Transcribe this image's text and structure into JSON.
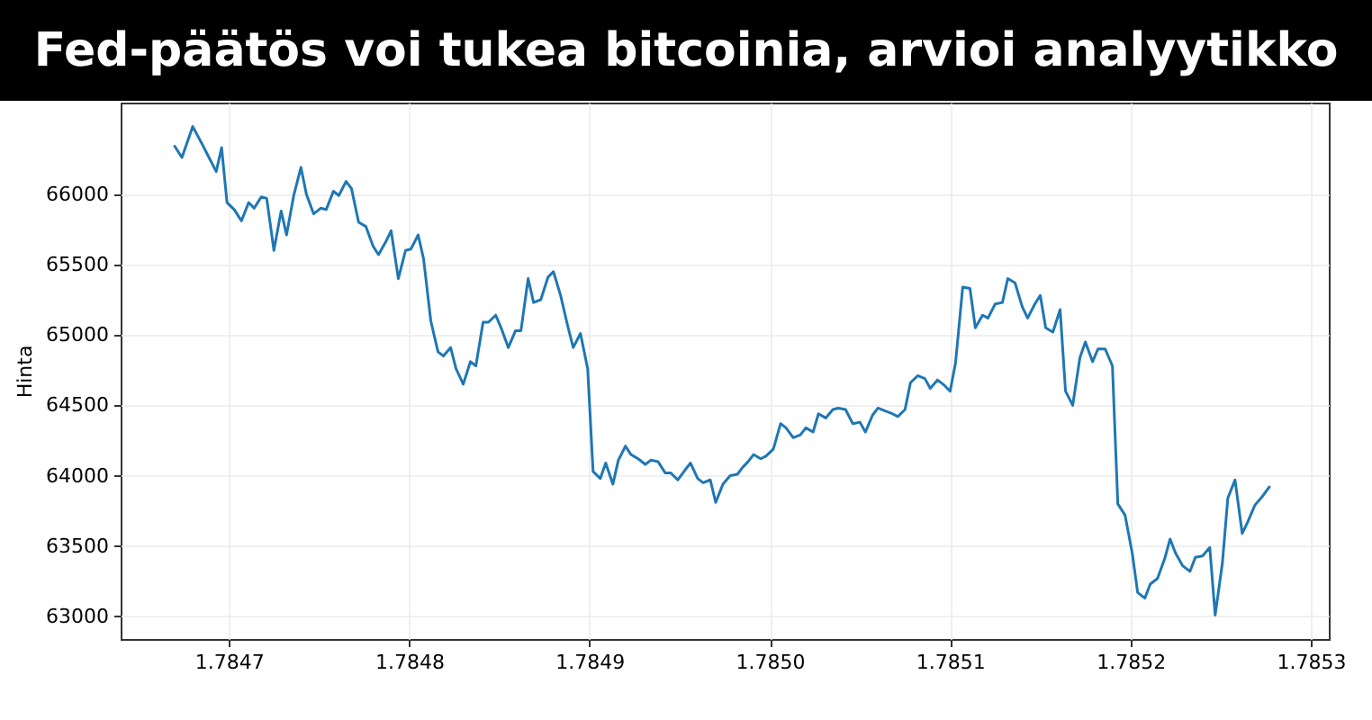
{
  "chart_data": {
    "type": "line",
    "title": "Fed-päätös voi tukea bitcoinia, arvioi analyytikko",
    "ylabel": "Hinta",
    "x": [
      1.78467,
      1.784674,
      1.78468,
      1.784685,
      1.784689,
      1.784693,
      1.784696,
      1.784699,
      1.784703,
      1.784707,
      1.784711,
      1.784714,
      1.784718,
      1.784721,
      1.784725,
      1.784729,
      1.784732,
      1.784736,
      1.78474,
      1.784743,
      1.784747,
      1.784751,
      1.784754,
      1.784758,
      1.784761,
      1.784765,
      1.784768,
      1.784772,
      1.784776,
      1.78478,
      1.784783,
      1.784787,
      1.78479,
      1.784794,
      1.784798,
      1.784801,
      1.784805,
      1.784808,
      1.784812,
      1.784816,
      1.784819,
      1.784823,
      1.784826,
      1.78483,
      1.784834,
      1.784837,
      1.784841,
      1.784844,
      1.784848,
      1.784851,
      1.784855,
      1.784859,
      1.784862,
      1.784866,
      1.784869,
      1.784873,
      1.784877,
      1.78488,
      1.784884,
      1.784888,
      1.784891,
      1.784895,
      1.784899,
      1.784902,
      1.784906,
      1.784909,
      1.784913,
      1.784916,
      1.78492,
      1.784923,
      1.784927,
      1.784931,
      1.784934,
      1.784938,
      1.784942,
      1.784945,
      1.784949,
      1.784953,
      1.784956,
      1.78496,
      1.784963,
      1.784967,
      1.78497,
      1.784974,
      1.784978,
      1.784982,
      1.784985,
      1.784988,
      1.784991,
      1.784995,
      1.784998,
      1.785002,
      1.785006,
      1.785009,
      1.785013,
      1.785017,
      1.78502,
      1.785024,
      1.785027,
      1.785031,
      1.785035,
      1.785038,
      1.785042,
      1.785046,
      1.78505,
      1.785053,
      1.785057,
      1.78506,
      1.785064,
      1.785068,
      1.785071,
      1.785075,
      1.785078,
      1.785082,
      1.785086,
      1.785089,
      1.785093,
      1.785097,
      1.7851,
      1.785103,
      1.785107,
      1.785111,
      1.785114,
      1.785118,
      1.785121,
      1.785125,
      1.785129,
      1.785132,
      1.785136,
      1.78514,
      1.785143,
      1.785147,
      1.78515,
      1.785153,
      1.785157,
      1.785161,
      1.785164,
      1.785168,
      1.785172,
      1.785175,
      1.785179,
      1.785182,
      1.785186,
      1.78519,
      1.785193,
      1.785197,
      1.785201,
      1.785204,
      1.785208,
      1.785211,
      1.785215,
      1.785219,
      1.785222,
      1.785225,
      1.785229,
      1.785233,
      1.785236,
      1.78524,
      1.785244,
      1.785247,
      1.785251,
      1.785254,
      1.785258,
      1.785262,
      1.785265,
      1.785269,
      1.785273,
      1.785277
    ],
    "series": [
      {
        "color": "#1f77b4",
        "values": [
          66340,
          66260,
          66480,
          66360,
          66260,
          66160,
          66330,
          65940,
          65890,
          65810,
          65940,
          65900,
          65980,
          65970,
          65600,
          65880,
          65710,
          65990,
          66190,
          66000,
          65860,
          65900,
          65890,
          66020,
          65990,
          66090,
          66040,
          65800,
          65770,
          65630,
          65570,
          65660,
          65740,
          65400,
          65600,
          65610,
          65710,
          65540,
          65100,
          64880,
          64850,
          64910,
          64760,
          64650,
          64810,
          64780,
          65090,
          65090,
          65140,
          65050,
          64910,
          65030,
          65030,
          65400,
          65230,
          65250,
          65410,
          65450,
          65280,
          65060,
          64910,
          65010,
          64760,
          64030,
          63980,
          64090,
          63940,
          64110,
          64210,
          64150,
          64120,
          64080,
          64110,
          64100,
          64020,
          64020,
          63970,
          64040,
          64090,
          63980,
          63950,
          63970,
          63810,
          63940,
          64000,
          64010,
          64060,
          64100,
          64150,
          64120,
          64140,
          64190,
          64370,
          64340,
          64270,
          64290,
          64340,
          64310,
          64440,
          64410,
          64470,
          64480,
          64470,
          64370,
          64380,
          64310,
          64430,
          64480,
          64460,
          64440,
          64420,
          64470,
          64660,
          64710,
          64690,
          64620,
          64680,
          64640,
          64600,
          64800,
          65340,
          65330,
          65050,
          65140,
          65120,
          65220,
          65230,
          65400,
          65370,
          65200,
          65120,
          65220,
          65280,
          65050,
          65020,
          65180,
          64600,
          64500,
          64840,
          64950,
          64810,
          64900,
          64900,
          64780,
          63800,
          63720,
          63450,
          63170,
          63130,
          63230,
          63270,
          63410,
          63550,
          63450,
          63360,
          63320,
          63420,
          63430,
          63490,
          63010,
          63380,
          63840,
          63970,
          63590,
          63670,
          63790,
          63850,
          63920
        ]
      }
    ],
    "xlim": [
      1.78464,
      1.78531
    ],
    "ylim": [
      62840,
      66650
    ],
    "xticks": [
      1.7847,
      1.7848,
      1.7849,
      {
        "value": 1.785,
        "label": "1.7850"
      },
      1.7851,
      1.7852,
      1.7853
    ],
    "yticks": [
      63000,
      63500,
      64000,
      64500,
      65000,
      65500,
      66000
    ],
    "grid": true,
    "line_style": "solid"
  }
}
